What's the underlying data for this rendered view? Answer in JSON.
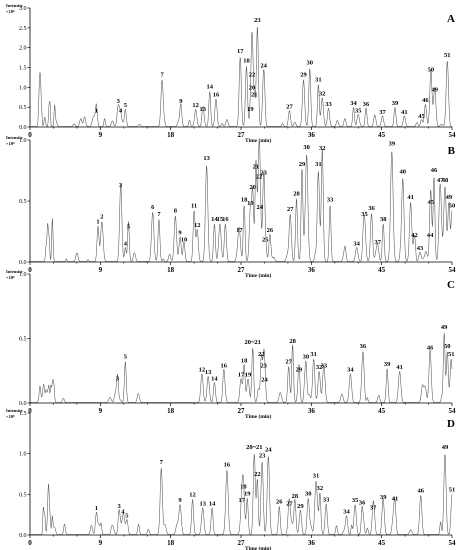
{
  "chart_data": [
    {
      "panel": "A",
      "type": "line",
      "ylabel": "Intensity",
      "yunit": "×10⁸",
      "xlabel": "Time (min)",
      "xlim": [
        0,
        54
      ],
      "xticks": [
        "0",
        "9",
        "18",
        "27",
        "36",
        "45",
        "54"
      ],
      "ylim": [
        0,
        3.0
      ],
      "yticks": [
        "0.0",
        "0.5",
        "1.0",
        "1.5",
        "2.0",
        "2.5",
        "3.0"
      ],
      "peaks": [
        {
          "label": "1",
          "x": 8.5,
          "y": 0.32
        },
        {
          "label": "3",
          "x": 11.3,
          "y": 0.55
        },
        {
          "label": "4",
          "x": 11.6,
          "y": 0.32
        },
        {
          "label": "5",
          "x": 12.2,
          "y": 0.45
        },
        {
          "label": "7",
          "x": 16.9,
          "y": 1.22
        },
        {
          "label": "9",
          "x": 19.3,
          "y": 0.55
        },
        {
          "label": "12",
          "x": 21.2,
          "y": 0.45
        },
        {
          "label": "13",
          "x": 22.1,
          "y": 0.35
        },
        {
          "label": "14",
          "x": 23.0,
          "y": 0.92
        },
        {
          "label": "16",
          "x": 23.8,
          "y": 0.72
        },
        {
          "label": "17",
          "x": 26.9,
          "y": 1.82
        },
        {
          "label": "18",
          "x": 27.7,
          "y": 1.58
        },
        {
          "label": "19",
          "x": 28.2,
          "y": 0.35
        },
        {
          "label": "20",
          "x": 28.4,
          "y": 0.9
        },
        {
          "label": "21",
          "x": 28.7,
          "y": 0.72
        },
        {
          "label": "22",
          "x": 28.4,
          "y": 1.22
        },
        {
          "label": "23",
          "x": 29.1,
          "y": 2.6
        },
        {
          "label": "24",
          "x": 29.9,
          "y": 1.45
        },
        {
          "label": "27",
          "x": 33.2,
          "y": 0.42
        },
        {
          "label": "29",
          "x": 35.0,
          "y": 1.22
        },
        {
          "label": "30",
          "x": 35.8,
          "y": 1.52
        },
        {
          "label": "31",
          "x": 36.9,
          "y": 1.1
        },
        {
          "label": "32",
          "x": 37.4,
          "y": 0.75
        },
        {
          "label": "33",
          "x": 38.2,
          "y": 0.48
        },
        {
          "label": "34",
          "x": 41.4,
          "y": 0.5
        },
        {
          "label": "35",
          "x": 42.0,
          "y": 0.32
        },
        {
          "label": "36",
          "x": 43.0,
          "y": 0.48
        },
        {
          "label": "37",
          "x": 45.1,
          "y": 0.28
        },
        {
          "label": "39",
          "x": 46.7,
          "y": 0.5
        },
        {
          "label": "41",
          "x": 47.9,
          "y": 0.28
        },
        {
          "label": "45",
          "x": 50.1,
          "y": 0.18
        },
        {
          "label": "46",
          "x": 50.6,
          "y": 0.58
        },
        {
          "label": "49",
          "x": 51.8,
          "y": 0.85
        },
        {
          "label": "50",
          "x": 51.3,
          "y": 1.35
        },
        {
          "label": "51",
          "x": 53.4,
          "y": 1.72
        }
      ]
    },
    {
      "panel": "B",
      "type": "line",
      "ylabel": "Intensity",
      "yunit": "×10⁸",
      "xlabel": "Time (min)",
      "xlim": [
        0,
        54
      ],
      "xticks": [
        "0",
        "9",
        "18",
        "27",
        "36",
        "45",
        "54"
      ],
      "ylim": [
        0,
        1.0
      ],
      "yticks": [
        "0.0",
        "0.5",
        "1.0"
      ],
      "peaks": [
        {
          "label": "1",
          "x": 8.7,
          "y": 0.3
        },
        {
          "label": "2",
          "x": 9.2,
          "y": 0.34
        },
        {
          "label": "3",
          "x": 11.6,
          "y": 0.6
        },
        {
          "label": "4",
          "x": 12.2,
          "y": 0.12
        },
        {
          "label": "5",
          "x": 12.6,
          "y": 0.26
        },
        {
          "label": "6",
          "x": 15.7,
          "y": 0.42
        },
        {
          "label": "7",
          "x": 16.5,
          "y": 0.36
        },
        {
          "label": "8",
          "x": 18.6,
          "y": 0.39
        },
        {
          "label": "9",
          "x": 19.2,
          "y": 0.21
        },
        {
          "label": "10",
          "x": 19.7,
          "y": 0.15
        },
        {
          "label": "11",
          "x": 21.0,
          "y": 0.43
        },
        {
          "label": "12",
          "x": 21.4,
          "y": 0.27
        },
        {
          "label": "13",
          "x": 22.6,
          "y": 0.82
        },
        {
          "label": "14",
          "x": 23.6,
          "y": 0.32
        },
        {
          "label": "15",
          "x": 24.3,
          "y": 0.32
        },
        {
          "label": "16",
          "x": 25.0,
          "y": 0.32
        },
        {
          "label": "17",
          "x": 26.8,
          "y": 0.23
        },
        {
          "label": "18",
          "x": 27.4,
          "y": 0.48
        },
        {
          "label": "19",
          "x": 28.2,
          "y": 0.45
        },
        {
          "label": "20",
          "x": 28.5,
          "y": 0.58
        },
        {
          "label": "21",
          "x": 28.9,
          "y": 0.75
        },
        {
          "label": "22",
          "x": 29.3,
          "y": 0.67
        },
        {
          "label": "23",
          "x": 29.9,
          "y": 0.7
        },
        {
          "label": "24",
          "x": 29.4,
          "y": 0.42
        },
        {
          "label": "25",
          "x": 30.1,
          "y": 0.15
        },
        {
          "label": "26",
          "x": 30.7,
          "y": 0.23
        },
        {
          "label": "27",
          "x": 33.3,
          "y": 0.4
        },
        {
          "label": "28",
          "x": 34.1,
          "y": 0.53
        },
        {
          "label": "29",
          "x": 34.8,
          "y": 0.77
        },
        {
          "label": "30",
          "x": 35.4,
          "y": 0.91
        },
        {
          "label": "31",
          "x": 36.9,
          "y": 0.77
        },
        {
          "label": "32",
          "x": 37.4,
          "y": 0.9
        },
        {
          "label": "33",
          "x": 38.4,
          "y": 0.48
        },
        {
          "label": "34",
          "x": 41.8,
          "y": 0.12
        },
        {
          "label": "35",
          "x": 42.8,
          "y": 0.36
        },
        {
          "label": "36",
          "x": 43.7,
          "y": 0.41
        },
        {
          "label": "37",
          "x": 44.5,
          "y": 0.13
        },
        {
          "label": "38",
          "x": 45.2,
          "y": 0.32
        },
        {
          "label": "39",
          "x": 46.3,
          "y": 0.94
        },
        {
          "label": "40",
          "x": 47.7,
          "y": 0.71
        },
        {
          "label": "41",
          "x": 48.7,
          "y": 0.5
        },
        {
          "label": "42",
          "x": 49.2,
          "y": 0.19
        },
        {
          "label": "43",
          "x": 49.9,
          "y": 0.08
        },
        {
          "label": "44",
          "x": 51.2,
          "y": 0.19
        },
        {
          "label": "45",
          "x": 51.3,
          "y": 0.46
        },
        {
          "label": "46",
          "x": 51.7,
          "y": 0.72
        },
        {
          "label": "47",
          "x": 52.5,
          "y": 0.64
        },
        {
          "label": "48",
          "x": 53.1,
          "y": 0.64
        },
        {
          "label": "49",
          "x": 53.6,
          "y": 0.5
        },
        {
          "label": "50",
          "x": 54.0,
          "y": 0.43
        }
      ]
    },
    {
      "panel": "C",
      "type": "line",
      "ylabel": "Intensity",
      "yunit": "×10⁸",
      "xlabel": "Time (min)",
      "xlim": [
        0,
        54
      ],
      "xticks": [
        "0",
        "9",
        "18",
        "27",
        "36",
        "45",
        "54"
      ],
      "ylim": [
        0,
        1.0
      ],
      "yticks": [
        "0.0",
        "0.5",
        "1.0"
      ],
      "peaks": [
        {
          "label": "3",
          "x": 11.2,
          "y": 0.16
        },
        {
          "label": "5",
          "x": 12.2,
          "y": 0.33
        },
        {
          "label": "12",
          "x": 22.0,
          "y": 0.23
        },
        {
          "label": "13",
          "x": 22.8,
          "y": 0.21
        },
        {
          "label": "14",
          "x": 23.6,
          "y": 0.16
        },
        {
          "label": "16",
          "x": 24.8,
          "y": 0.26
        },
        {
          "label": "17",
          "x": 27.0,
          "y": 0.19
        },
        {
          "label": "18",
          "x": 27.4,
          "y": 0.3
        },
        {
          "label": "19",
          "x": 27.9,
          "y": 0.19
        },
        {
          "label": "20~21",
          "x": 28.5,
          "y": 0.44
        },
        {
          "label": "22",
          "x": 29.6,
          "y": 0.35
        },
        {
          "label": "23",
          "x": 29.9,
          "y": 0.26
        },
        {
          "label": "24",
          "x": 30.0,
          "y": 0.15
        },
        {
          "label": "27",
          "x": 33.1,
          "y": 0.29
        },
        {
          "label": "28",
          "x": 33.6,
          "y": 0.45
        },
        {
          "label": "29",
          "x": 34.4,
          "y": 0.23
        },
        {
          "label": "30",
          "x": 35.3,
          "y": 0.33
        },
        {
          "label": "31",
          "x": 36.3,
          "y": 0.35
        },
        {
          "label": "32",
          "x": 37.0,
          "y": 0.25
        },
        {
          "label": "33",
          "x": 37.6,
          "y": 0.26
        },
        {
          "label": "34",
          "x": 41.0,
          "y": 0.23
        },
        {
          "label": "36",
          "x": 42.6,
          "y": 0.41
        },
        {
          "label": "39",
          "x": 45.7,
          "y": 0.27
        },
        {
          "label": "41",
          "x": 47.3,
          "y": 0.25
        },
        {
          "label": "46",
          "x": 51.2,
          "y": 0.4
        },
        {
          "label": "49",
          "x": 53.0,
          "y": 0.56
        },
        {
          "label": "50",
          "x": 53.4,
          "y": 0.41
        },
        {
          "label": "51",
          "x": 53.9,
          "y": 0.35
        }
      ]
    },
    {
      "panel": "D",
      "type": "line",
      "ylabel": "Intensity",
      "yunit": "×10⁸",
      "xlabel": "Time (min)",
      "xlim": [
        0,
        54
      ],
      "xticks": [
        "0",
        "9",
        "18",
        "27",
        "36",
        "45",
        "54"
      ],
      "ylim": [
        0,
        1.5
      ],
      "yticks": [
        "0.0",
        "0.5",
        "1.0",
        "1.5"
      ],
      "peaks": [
        {
          "label": "1",
          "x": 8.5,
          "y": 0.28
        },
        {
          "label": "3",
          "x": 11.4,
          "y": 0.31
        },
        {
          "label": "4",
          "x": 11.9,
          "y": 0.24
        },
        {
          "label": "5",
          "x": 12.4,
          "y": 0.19
        },
        {
          "label": "7",
          "x": 16.8,
          "y": 0.85
        },
        {
          "label": "9",
          "x": 19.2,
          "y": 0.38
        },
        {
          "label": "12",
          "x": 20.8,
          "y": 0.45
        },
        {
          "label": "13",
          "x": 22.1,
          "y": 0.34
        },
        {
          "label": "14",
          "x": 23.3,
          "y": 0.34
        },
        {
          "label": "16",
          "x": 25.2,
          "y": 0.82
        },
        {
          "label": "17",
          "x": 27.1,
          "y": 0.38
        },
        {
          "label": "18",
          "x": 27.3,
          "y": 0.55
        },
        {
          "label": "19",
          "x": 27.8,
          "y": 0.46
        },
        {
          "label": "20~21",
          "x": 28.7,
          "y": 1.03
        },
        {
          "label": "22",
          "x": 29.1,
          "y": 0.7
        },
        {
          "label": "23",
          "x": 29.7,
          "y": 0.93
        },
        {
          "label": "24",
          "x": 30.5,
          "y": 1.0
        },
        {
          "label": "26",
          "x": 31.9,
          "y": 0.36
        },
        {
          "label": "27",
          "x": 33.2,
          "y": 0.34
        },
        {
          "label": "28",
          "x": 33.9,
          "y": 0.43
        },
        {
          "label": "29",
          "x": 34.6,
          "y": 0.31
        },
        {
          "label": "30",
          "x": 35.6,
          "y": 0.46
        },
        {
          "label": "31",
          "x": 36.6,
          "y": 0.68
        },
        {
          "label": "32",
          "x": 37.1,
          "y": 0.53
        },
        {
          "label": "33",
          "x": 37.9,
          "y": 0.39
        },
        {
          "label": "34",
          "x": 40.5,
          "y": 0.24
        },
        {
          "label": "35",
          "x": 41.6,
          "y": 0.38
        },
        {
          "label": "36",
          "x": 42.5,
          "y": 0.35
        },
        {
          "label": "37",
          "x": 43.9,
          "y": 0.29
        },
        {
          "label": "39",
          "x": 45.2,
          "y": 0.42
        },
        {
          "label": "41",
          "x": 46.7,
          "y": 0.4
        },
        {
          "label": "46",
          "x": 50.0,
          "y": 0.5
        },
        {
          "label": "49",
          "x": 53.1,
          "y": 1.03
        },
        {
          "label": "51",
          "x": 54.0,
          "y": 0.51
        }
      ]
    }
  ]
}
